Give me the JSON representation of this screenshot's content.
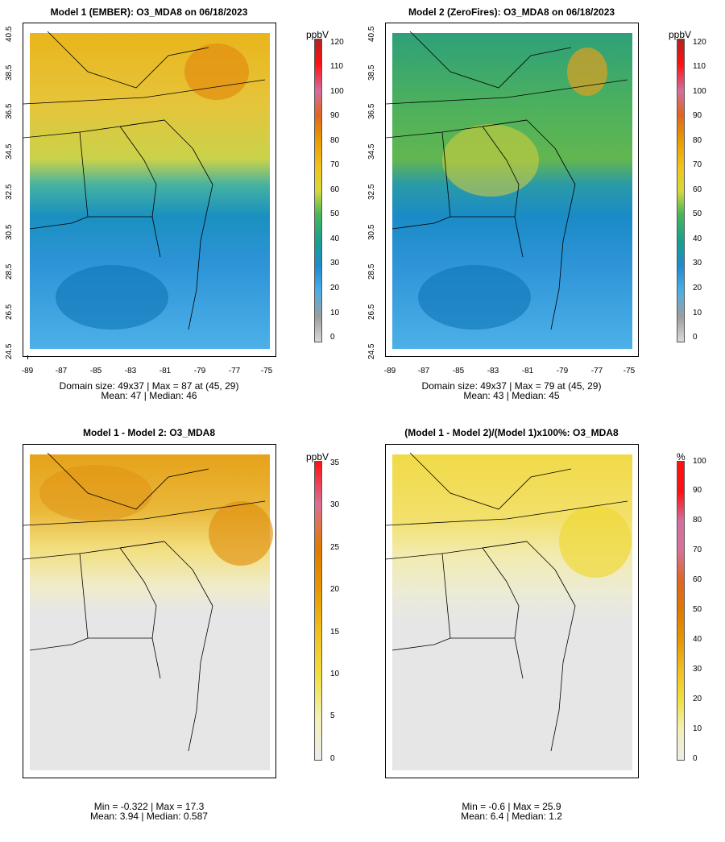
{
  "panels": [
    {
      "title": "Model 1 (EMBER): O3_MDA8 on 06/18/2023",
      "colorbar": {
        "unit": "ppbV",
        "ticks": [
          "0",
          "10",
          "20",
          "30",
          "40",
          "50",
          "60",
          "70",
          "80",
          "90",
          "100",
          "110",
          "120"
        ]
      },
      "stats": {
        "line1": "Domain size: 49x37 | Max = 87 at (45, 29)",
        "line2": "Mean: 47 |  Median: 46"
      }
    },
    {
      "title": "Model 2 (ZeroFires): O3_MDA8 on 06/18/2023",
      "colorbar": {
        "unit": "ppbV",
        "ticks": [
          "0",
          "10",
          "20",
          "30",
          "40",
          "50",
          "60",
          "70",
          "80",
          "90",
          "100",
          "110",
          "120"
        ]
      },
      "stats": {
        "line1": "Domain size: 49x37 | Max = 79 at (45, 29)",
        "line2": "Mean: 43 |  Median: 45"
      }
    },
    {
      "title": "Model 1 - Model 2: O3_MDA8",
      "colorbar": {
        "unit": "ppbV",
        "ticks": [
          "0",
          "5",
          "10",
          "15",
          "20",
          "25",
          "30",
          "35"
        ]
      },
      "stats": {
        "line1": "Min = -0.322 | Max = 17.3",
        "line2": "Mean: 3.94 |  Median: 0.587"
      }
    },
    {
      "title": "(Model 1 - Model 2)/(Model 1)x100%: O3_MDA8",
      "colorbar": {
        "unit": "%",
        "ticks": [
          "0",
          "10",
          "20",
          "30",
          "40",
          "50",
          "60",
          "70",
          "80",
          "90",
          "100"
        ]
      },
      "stats": {
        "line1": "Min = -0.6 | Max = 25.9",
        "line2": "Mean: 6.4 |  Median: 1.2"
      }
    }
  ],
  "axes": {
    "x_ticks": [
      "-89",
      "-87",
      "-85",
      "-83",
      "-81",
      "-79",
      "-77",
      "-75"
    ],
    "y_ticks": [
      "24.5",
      "26.5",
      "28.5",
      "30.5",
      "32.5",
      "34.5",
      "36.5",
      "38.5",
      "40.5"
    ]
  },
  "colors": {
    "ozone_scale": [
      "#d9d9d9",
      "#9e9e9e",
      "#4aaee6",
      "#1f8ad0",
      "#0a79b5",
      "#16a08e",
      "#46b65a",
      "#d7d93a",
      "#f2c21a",
      "#e89a00",
      "#e06520",
      "#d36e9e",
      "#ff1010",
      "#b22222"
    ],
    "diff_scale": [
      "#ececec",
      "#f3f0b5",
      "#f2df40",
      "#f0c020",
      "#e59800",
      "#e07a00",
      "#d87098",
      "#ff1010"
    ]
  }
}
